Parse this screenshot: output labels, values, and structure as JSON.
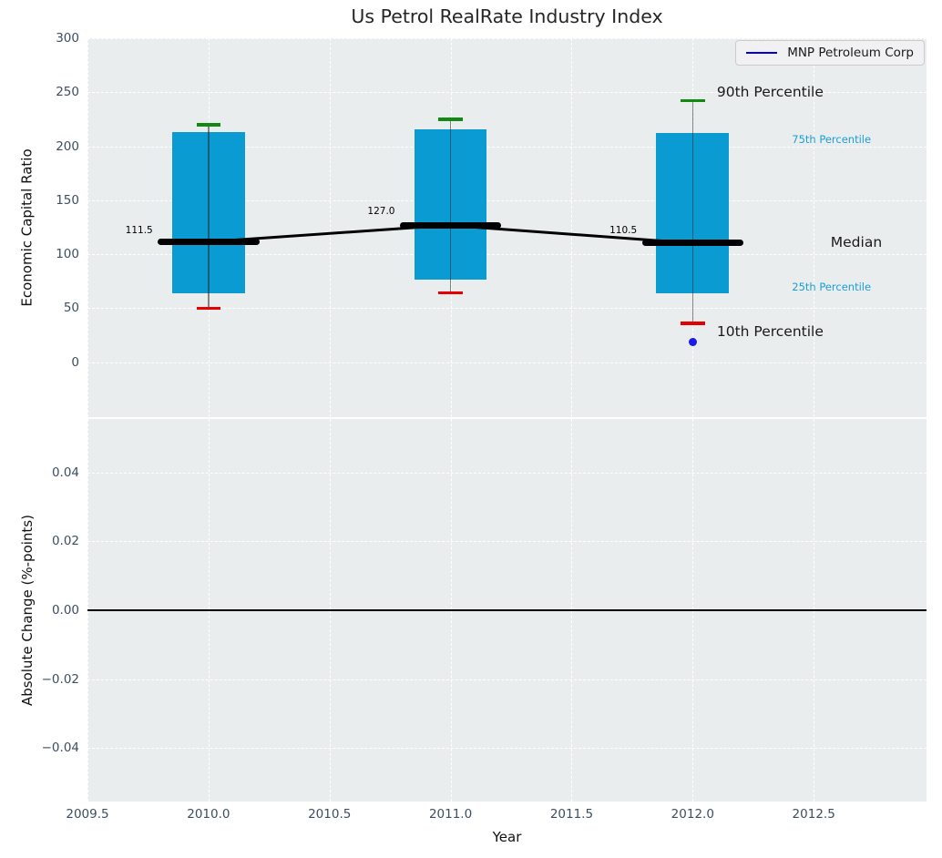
{
  "chart_data": {
    "type": "box",
    "title": "Us Petrol RealRate Industry Index",
    "legend_label": "MNP Petroleum Corp",
    "legend_position": "upper right",
    "xlabel": "Year",
    "xlim": [
      2009.5,
      2012.966
    ],
    "xticks": [
      {
        "v": 2009.5,
        "label": "2009.5"
      },
      {
        "v": 2010.0,
        "label": "2010.0"
      },
      {
        "v": 2010.5,
        "label": "2010.5"
      },
      {
        "v": 2011.0,
        "label": "2011.0"
      },
      {
        "v": 2011.5,
        "label": "2011.5"
      },
      {
        "v": 2012.0,
        "label": "2012.0"
      },
      {
        "v": 2012.5,
        "label": "2012.5"
      }
    ],
    "grid": "white dashed on light panel",
    "top_panel": {
      "ylabel": "Economic Capital Ratio",
      "ylim": [
        -51,
        300
      ],
      "yticks": [
        {
          "v": 0,
          "label": "0"
        },
        {
          "v": 50,
          "label": "50"
        },
        {
          "v": 100,
          "label": "100"
        },
        {
          "v": 150,
          "label": "150"
        },
        {
          "v": 200,
          "label": "200"
        },
        {
          "v": 250,
          "label": "250"
        },
        {
          "v": 300,
          "label": "300"
        }
      ],
      "boxes": [
        {
          "x": 2010,
          "p10": 50,
          "p25": 64,
          "median": 111.5,
          "p75": 213,
          "p90": 220,
          "median_label": "111.5",
          "label_anchor": {
            "x": 2009.77,
            "y": 122
          }
        },
        {
          "x": 2011,
          "p10": 64,
          "p25": 76,
          "median": 127.0,
          "p75": 216,
          "p90": 225,
          "median_label": "127.0",
          "label_anchor": {
            "x": 2010.77,
            "y": 140
          }
        },
        {
          "x": 2012,
          "p10": 36,
          "p25": 64,
          "median": 110.5,
          "p75": 212,
          "p90": 242,
          "median_label": "110.5",
          "label_anchor": {
            "x": 2011.77,
            "y": 122
          }
        }
      ],
      "outlier": {
        "x": 2012,
        "y": 19
      },
      "annotations": [
        {
          "text": "90th Percentile",
          "x": 2012.1,
          "y": 250,
          "kind": "major"
        },
        {
          "text": "75th Percentile",
          "x": 2012.41,
          "y": 206,
          "kind": "minor"
        },
        {
          "text": "Median",
          "x": 2012.57,
          "y": 111,
          "kind": "major"
        },
        {
          "text": "25th Percentile",
          "x": 2012.41,
          "y": 70,
          "kind": "minor"
        },
        {
          "text": "10th Percentile",
          "x": 2012.1,
          "y": 28,
          "kind": "major"
        }
      ]
    },
    "bottom_panel": {
      "ylabel": "Absolute Change (%-points)",
      "ylim": [
        -0.0555,
        0.0555
      ],
      "yticks": [
        {
          "v": 0.04,
          "label": "0.04"
        },
        {
          "v": 0.02,
          "label": "0.02"
        },
        {
          "v": 0.0,
          "label": "0.00"
        },
        {
          "v": -0.02,
          "label": "−0.02"
        },
        {
          "v": -0.04,
          "label": "−0.04"
        }
      ],
      "zero_line": 0.0
    },
    "colors": {
      "box_fill": "#0a9bd3",
      "whisker": "rgba(40,40,40,0.55)",
      "cap_high": "#128a12",
      "cap_low": "#e60000",
      "median": "#000000",
      "median_connector": "#000000",
      "outlier": "#1c1ce6",
      "legend_line": "#0000dd",
      "annotation_major": "#1a1a1a",
      "annotation_minor": "#1b9ed8",
      "tick_color": "#3d4e63",
      "zero_line": "#000000"
    }
  }
}
